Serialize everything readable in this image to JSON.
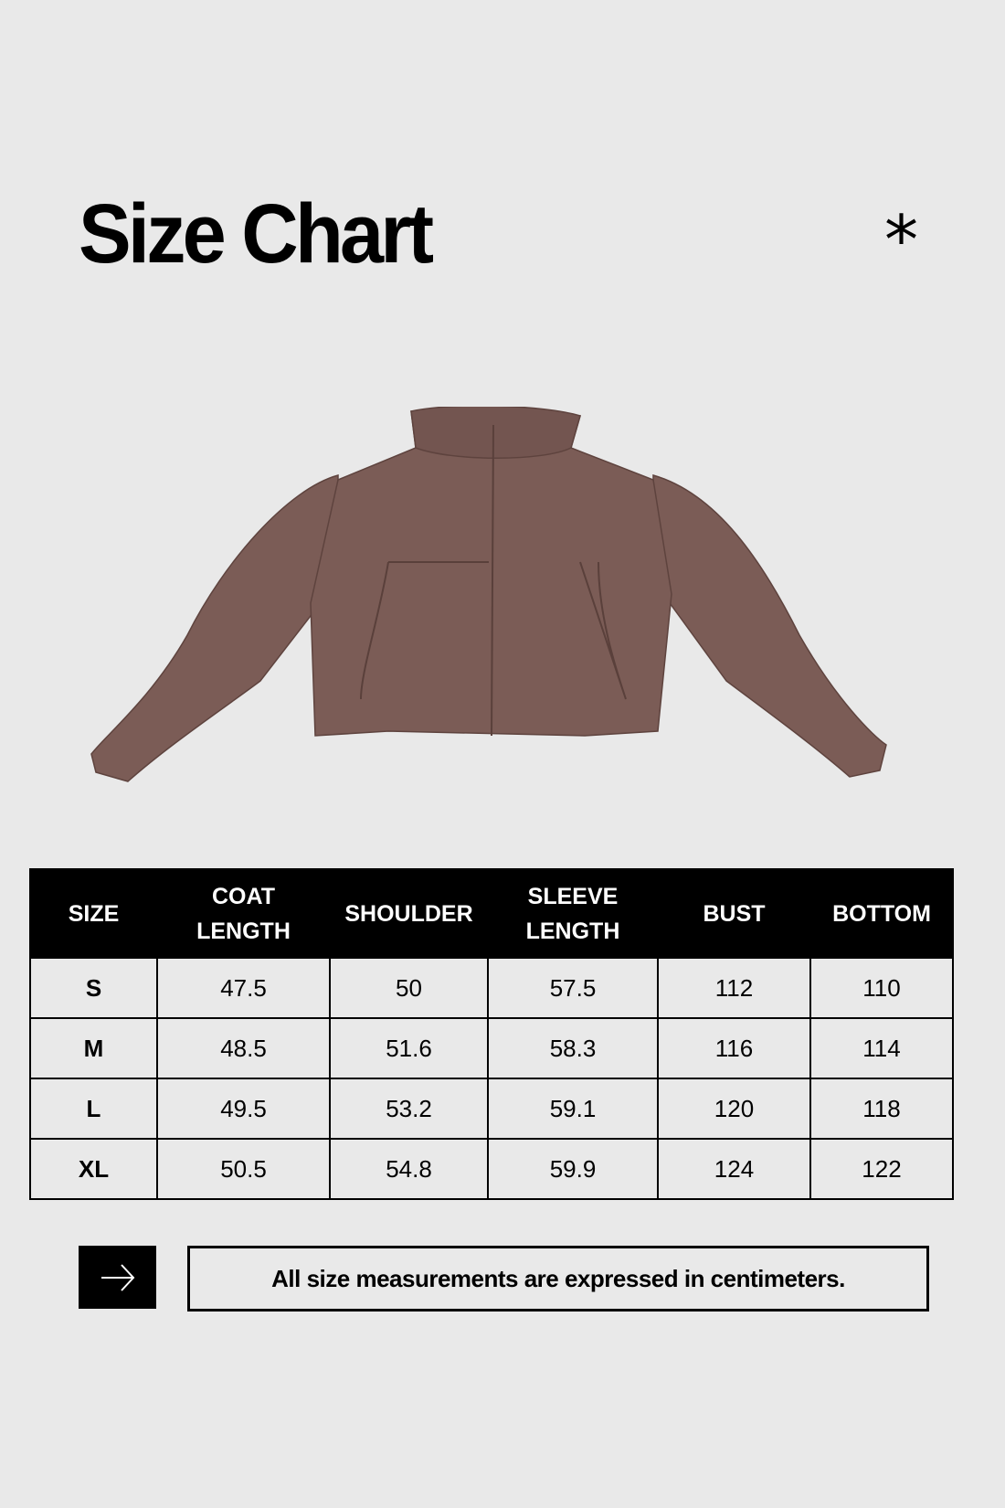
{
  "header": {
    "title": "Size Chart",
    "decoration": "*"
  },
  "product_image": {
    "icon": "jacket-image",
    "color": "#7b5c56"
  },
  "table": {
    "columns": [
      "SIZE",
      "COAT\nLENGTH",
      "SHOULDER",
      "SLEEVE\nLENGTH",
      "BUST",
      "BOTTOM"
    ],
    "rows": [
      [
        "S",
        "47.5",
        "50",
        "57.5",
        "112",
        "110"
      ],
      [
        "M",
        "48.5",
        "51.6",
        "58.3",
        "116",
        "114"
      ],
      [
        "L",
        "49.5",
        "53.2",
        "59.1",
        "120",
        "118"
      ],
      [
        "XL",
        "50.5",
        "54.8",
        "59.9",
        "124",
        "122"
      ]
    ]
  },
  "footer": {
    "arrow_icon": "arrow-right-icon",
    "note": "All size measurements are expressed in centimeters."
  }
}
